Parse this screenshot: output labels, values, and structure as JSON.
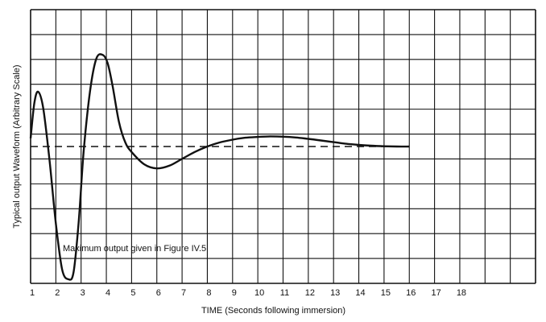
{
  "chart_data": {
    "type": "line",
    "xlabel": "TIME (Seconds following immersion)",
    "ylabel": "Typical output Waveform (Arbitrary Scale)",
    "x_tick_labels": [
      "1",
      "2",
      "3",
      "4",
      "5",
      "6",
      "7",
      "8",
      "9",
      "10",
      "11",
      "12",
      "13",
      "14",
      "15",
      "16",
      "17",
      "18"
    ],
    "xlim": [
      1,
      21
    ],
    "ylim": [
      -5,
      5
    ],
    "grid": true,
    "annotation": "Maximum output given in Figure IV.5",
    "baseline": {
      "y": 0,
      "style": "dashed",
      "x_range": [
        1,
        16
      ]
    },
    "series": [
      {
        "x": [
          1.0,
          1.15,
          1.3,
          1.5,
          1.75,
          2.0,
          2.25,
          2.5,
          2.7,
          2.9,
          3.1,
          3.35,
          3.6,
          3.85,
          4.05,
          4.25,
          4.5,
          4.75,
          5.0,
          5.5,
          6.0,
          6.5,
          7.0,
          7.5,
          8.0,
          8.5,
          9.0,
          9.5,
          10.0,
          10.5,
          11.0,
          11.5,
          12.0,
          12.5,
          13.0,
          13.5,
          14.0,
          14.5,
          15.0,
          15.5,
          16.0
        ],
        "y": [
          0.3,
          1.6,
          2.0,
          1.4,
          -0.5,
          -2.8,
          -4.5,
          -4.85,
          -4.6,
          -2.8,
          -0.2,
          2.0,
          3.2,
          3.35,
          3.05,
          2.2,
          0.9,
          0.15,
          -0.2,
          -0.65,
          -0.8,
          -0.7,
          -0.45,
          -0.2,
          0.0,
          0.15,
          0.25,
          0.32,
          0.35,
          0.37,
          0.36,
          0.33,
          0.28,
          0.22,
          0.16,
          0.1,
          0.06,
          0.03,
          0.01,
          0.0,
          0.0
        ]
      }
    ]
  }
}
